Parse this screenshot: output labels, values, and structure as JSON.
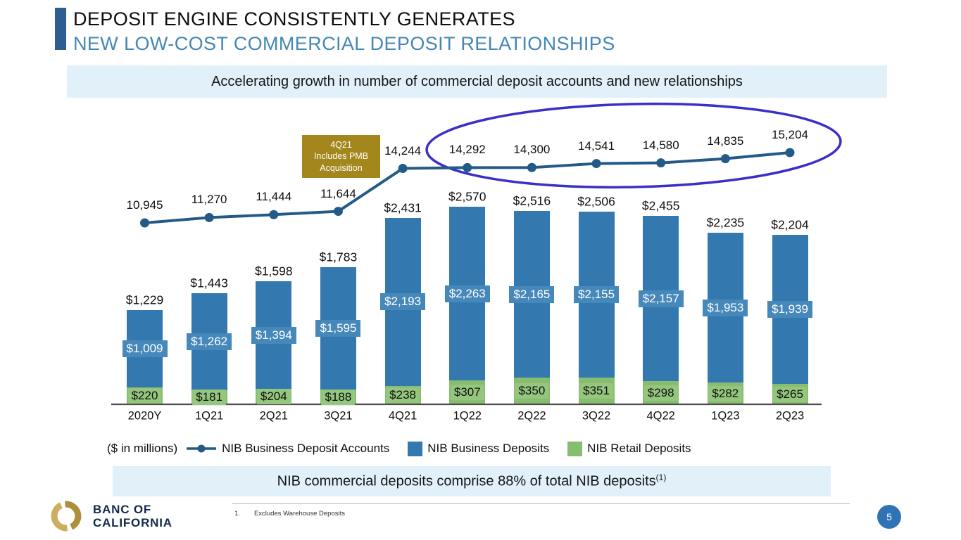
{
  "slide": {
    "title_line1": "DEPOSIT ENGINE CONSISTENTLY GENERATES",
    "title_line2": "NEW LOW-COST COMMERCIAL DEPOSIT RELATIONSHIPS",
    "banner_top": "Accelerating growth in number of commercial deposit accounts and new relationships",
    "banner_bottom_text": "NIB commercial deposits comprise 88% of total NIB deposits",
    "banner_bottom_superscript": "(1)",
    "callout": [
      "4Q21",
      "Includes PMB",
      "Acquisition"
    ],
    "footnote_number": "1.",
    "footnote_text": "Excludes Warehouse Deposits",
    "logo_line1": "BANC OF",
    "logo_line2": "CALIFORNIA",
    "page_number": "5"
  },
  "chart_data": {
    "type": "combo: stacked bar + line",
    "units_note": "($ in millions)",
    "categories": [
      "2020Y",
      "1Q21",
      "2Q21",
      "3Q21",
      "4Q21",
      "1Q22",
      "2Q22",
      "3Q22",
      "4Q22",
      "1Q23",
      "2Q23"
    ],
    "series": [
      {
        "name": "NIB Business Deposit Accounts",
        "type": "line",
        "color": "#245A88",
        "values": [
          10945,
          11270,
          11444,
          11644,
          14244,
          14292,
          14300,
          14541,
          14580,
          14835,
          15204
        ],
        "labels": [
          "10,945",
          "11,270",
          "11,444",
          "11,644",
          "14,244",
          "14,292",
          "14,300",
          "14,541",
          "14,580",
          "14,835",
          "15,204"
        ]
      },
      {
        "name": "NIB Business Deposits",
        "type": "bar",
        "color": "#3379AF",
        "values": [
          1009,
          1262,
          1394,
          1595,
          2193,
          2263,
          2165,
          2155,
          2157,
          1953,
          1939
        ],
        "labels": [
          "$1,009",
          "$1,262",
          "$1,394",
          "$1,595",
          "$2,193",
          "$2,263",
          "$2,165",
          "$2,155",
          "$2,157",
          "$1,953",
          "$1,939"
        ]
      },
      {
        "name": "NIB Retail Deposits",
        "type": "bar",
        "color": "#88BD70",
        "values": [
          220,
          181,
          204,
          188,
          238,
          307,
          350,
          351,
          298,
          282,
          265
        ],
        "labels": [
          "$220",
          "$181",
          "$204",
          "$188",
          "$238",
          "$307",
          "$350",
          "$351",
          "$298",
          "$282",
          "$265"
        ]
      }
    ],
    "stack_total_labels": [
      "$1,229",
      "$1,443",
      "$1,598",
      "$1,783",
      "$2,431",
      "$2,570",
      "$2,516",
      "$2,506",
      "$2,455",
      "$2,235",
      "$2,204"
    ],
    "legend_position": "bottom",
    "grid": "off",
    "highlight_ellipse_color": "#3B2FC9",
    "callout_box_color": "#A3861C"
  }
}
